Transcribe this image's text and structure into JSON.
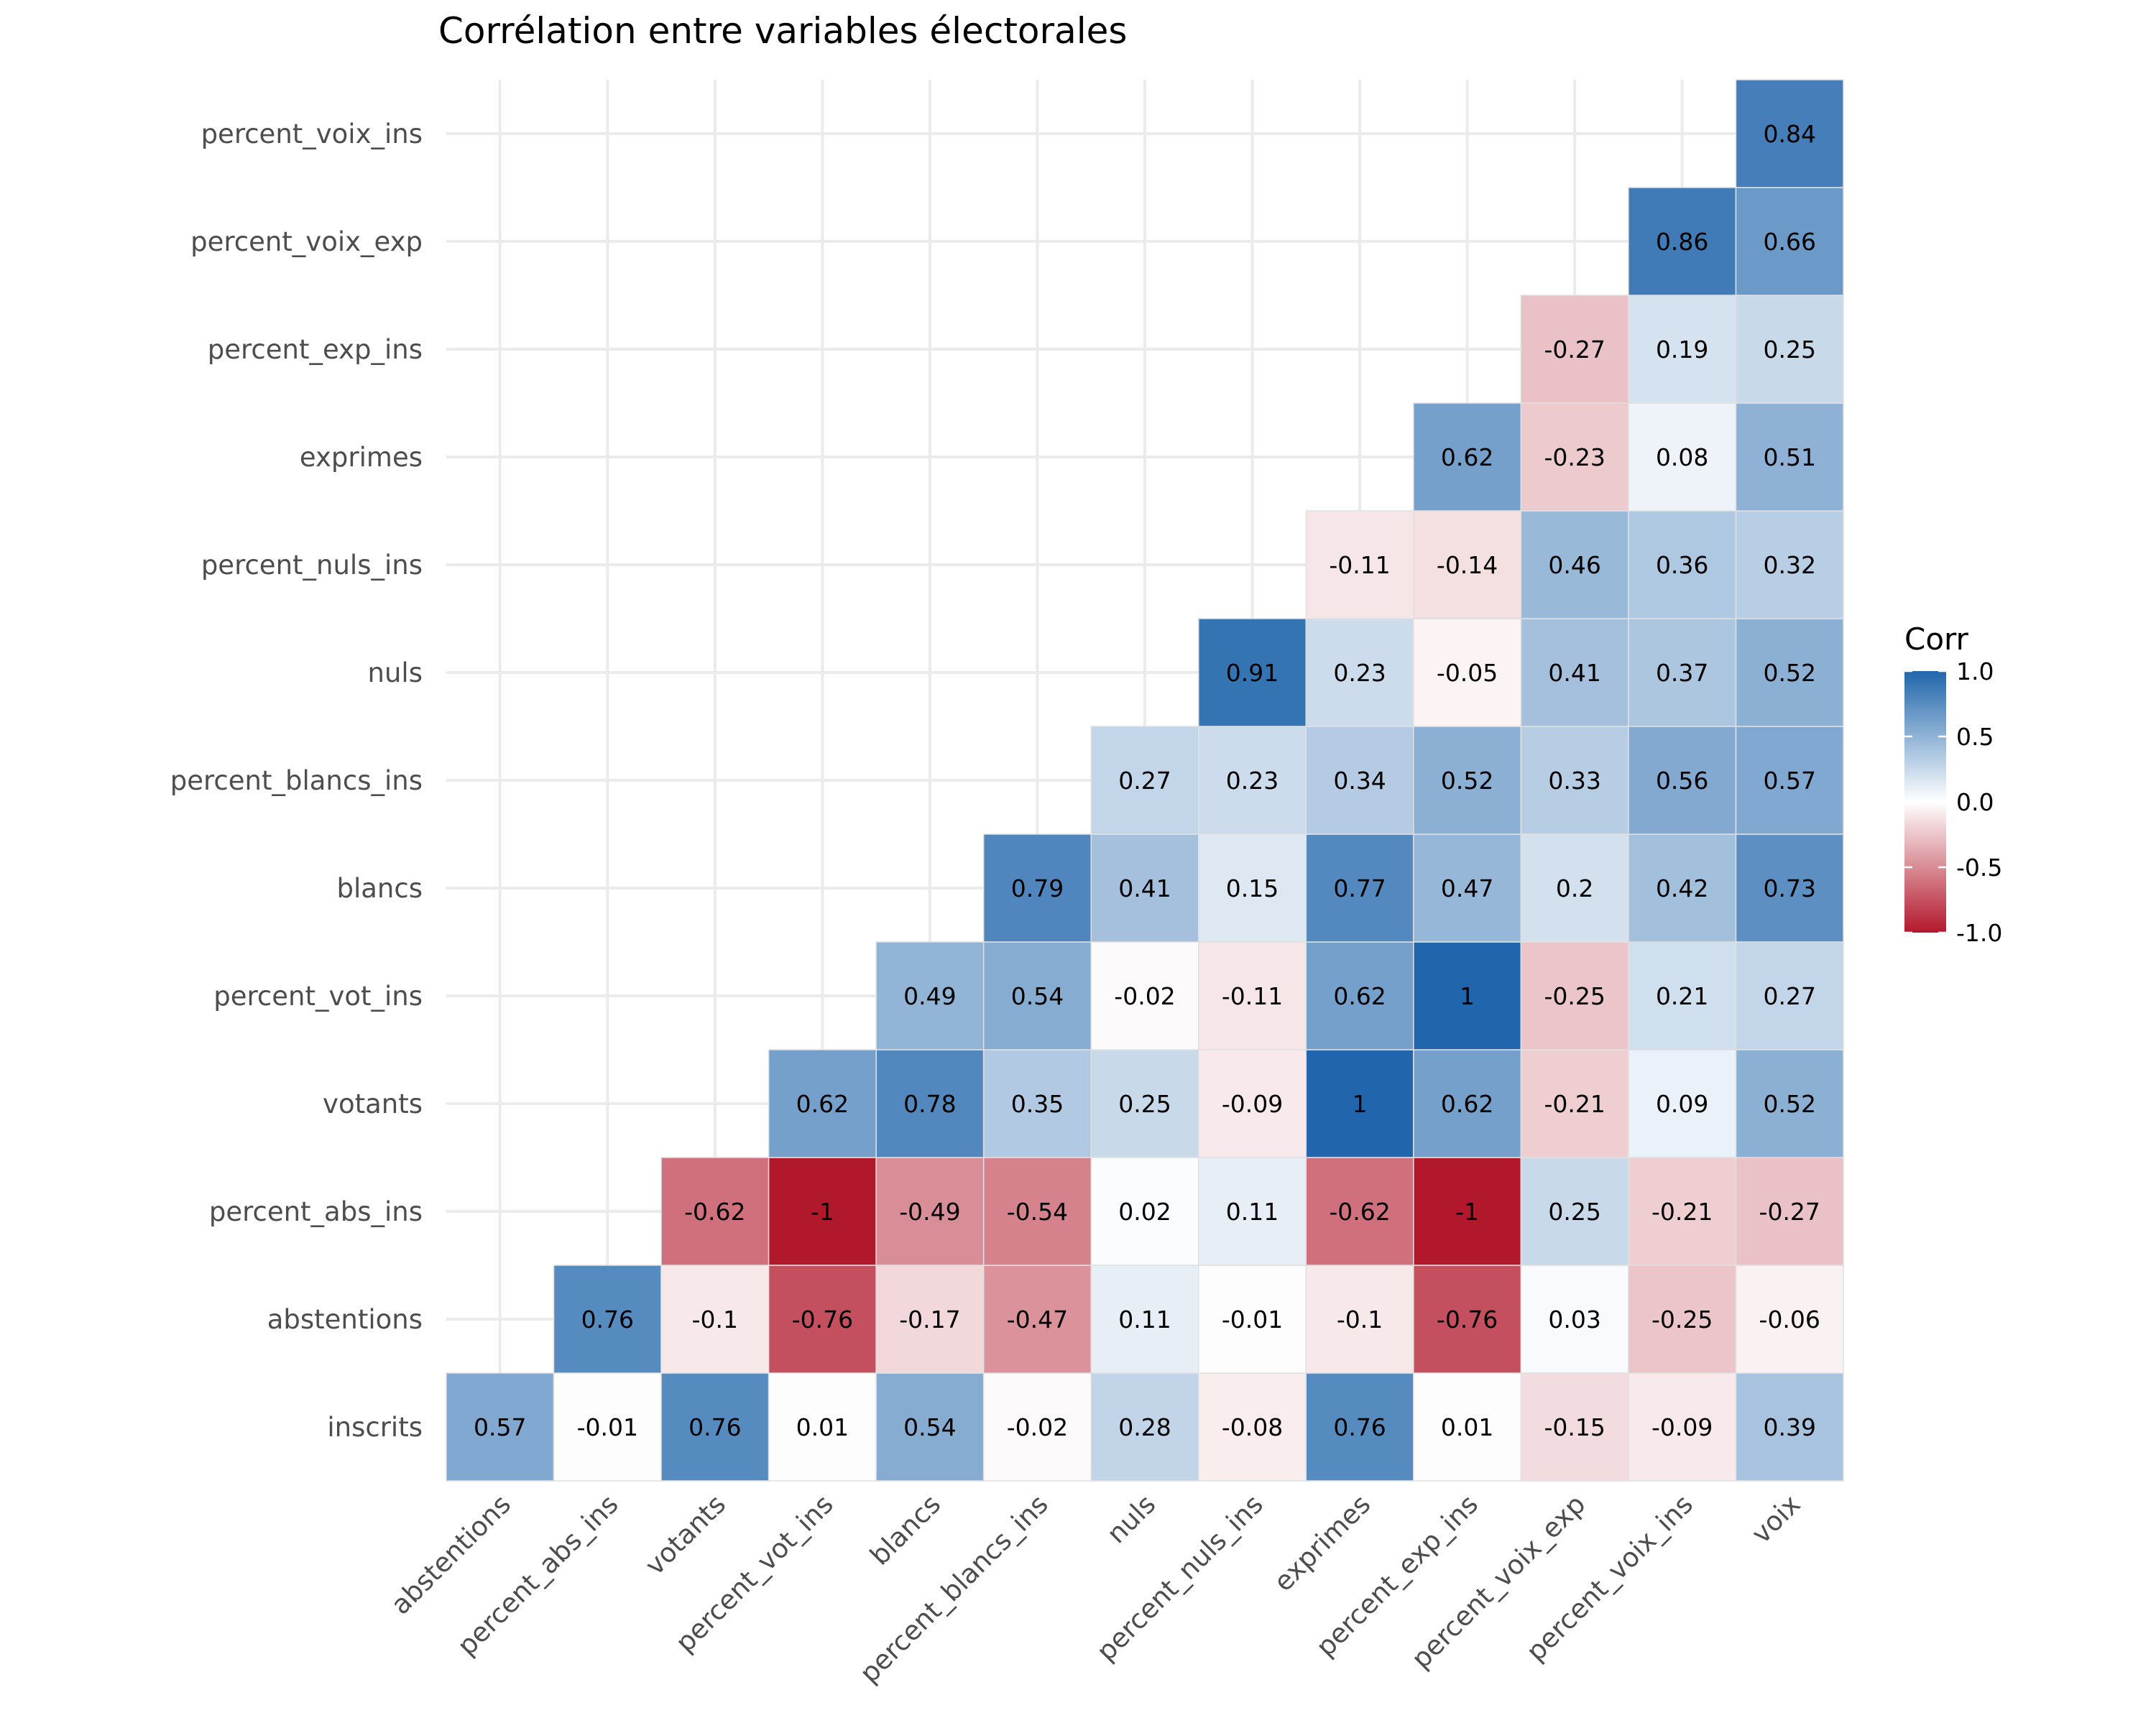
{
  "chart_data": {
    "type": "heatmap",
    "title": "Corrélation entre variables électorales",
    "xlabel": "",
    "ylabel": "",
    "grid": true,
    "legend_placement": "right",
    "x_categories": [
      "abstentions",
      "percent_abs_ins",
      "votants",
      "percent_vot_ins",
      "blancs",
      "percent_blancs_ins",
      "nuls",
      "percent_nuls_ins",
      "exprimes",
      "percent_exp_ins",
      "percent_voix_exp",
      "percent_voix_ins",
      "voix"
    ],
    "y_categories": [
      "inscrits",
      "abstentions",
      "percent_abs_ins",
      "votants",
      "percent_vot_ins",
      "blancs",
      "percent_blancs_ins",
      "nuls",
      "percent_nuls_ins",
      "exprimes",
      "percent_exp_ins",
      "percent_voix_exp",
      "percent_voix_ins"
    ],
    "rows": [
      [
        "0.57",
        "-0.01",
        "0.76",
        "0.01",
        "0.54",
        "-0.02",
        "0.28",
        "-0.08",
        "0.76",
        "0.01",
        "-0.15",
        "-0.09",
        "0.39"
      ],
      [
        "",
        "0.76",
        "-0.1",
        "-0.76",
        "-0.17",
        "-0.47",
        "0.11",
        "-0.01",
        "-0.1",
        "-0.76",
        "0.03",
        "-0.25",
        "-0.06"
      ],
      [
        "",
        "",
        "-0.62",
        "-1",
        "-0.49",
        "-0.54",
        "0.02",
        "0.11",
        "-0.62",
        "-1",
        "0.25",
        "-0.21",
        "-0.27"
      ],
      [
        "",
        "",
        "",
        "0.62",
        "0.78",
        "0.35",
        "0.25",
        "-0.09",
        "1",
        "0.62",
        "-0.21",
        "0.09",
        "0.52"
      ],
      [
        "",
        "",
        "",
        "",
        "0.49",
        "0.54",
        "-0.02",
        "-0.11",
        "0.62",
        "1",
        "-0.25",
        "0.21",
        "0.27"
      ],
      [
        "",
        "",
        "",
        "",
        "",
        "0.79",
        "0.41",
        "0.15",
        "0.77",
        "0.47",
        "0.2",
        "0.42",
        "0.73"
      ],
      [
        "",
        "",
        "",
        "",
        "",
        "",
        "0.27",
        "0.23",
        "0.34",
        "0.52",
        "0.33",
        "0.56",
        "0.57"
      ],
      [
        "",
        "",
        "",
        "",
        "",
        "",
        "",
        "0.91",
        "0.23",
        "-0.05",
        "0.41",
        "0.37",
        "0.52"
      ],
      [
        "",
        "",
        "",
        "",
        "",
        "",
        "",
        "",
        "-0.11",
        "-0.14",
        "0.46",
        "0.36",
        "0.32"
      ],
      [
        "",
        "",
        "",
        "",
        "",
        "",
        "",
        "",
        "",
        "0.62",
        "-0.23",
        "0.08",
        "0.51"
      ],
      [
        "",
        "",
        "",
        "",
        "",
        "",
        "",
        "",
        "",
        "",
        "-0.27",
        "0.19",
        "0.25"
      ],
      [
        "",
        "",
        "",
        "",
        "",
        "",
        "",
        "",
        "",
        "",
        "",
        "0.86",
        "0.66"
      ],
      [
        "",
        "",
        "",
        "",
        "",
        "",
        "",
        "",
        "",
        "",
        "",
        "",
        "0.84"
      ]
    ],
    "legend": {
      "title": "Corr",
      "ticks": [
        "1.0",
        "0.5",
        "0.0",
        "-0.5",
        "-1.0"
      ],
      "range": [
        -1,
        1
      ]
    },
    "colors": {
      "negative": "#b2182b",
      "mid": "#ffffff",
      "positive": "#2166ac"
    }
  }
}
